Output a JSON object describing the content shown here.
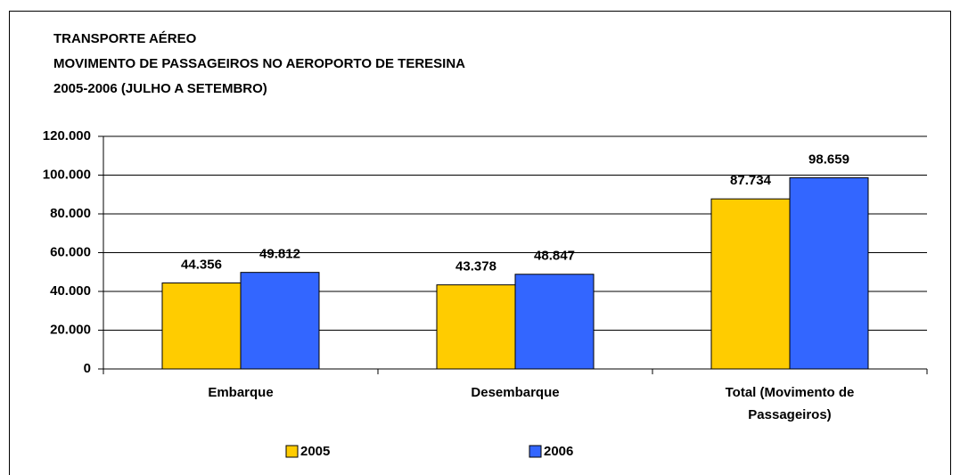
{
  "chart_data": {
    "type": "bar",
    "title": [
      "TRANSPORTE AÉREO",
      "MOVIMENTO DE PASSAGEIROS NO AEROPORTO DE TERESINA",
      "2005-2006 (JULHO A SETEMBRO)"
    ],
    "categories": [
      "Embarque",
      "Desembarque",
      "Total (Movimento de Passageiros)"
    ],
    "series": [
      {
        "name": "2005",
        "color": "#ffcc00",
        "values": [
          44356,
          43378,
          87734
        ],
        "value_labels": [
          "44.356",
          "43.378",
          "87.734"
        ]
      },
      {
        "name": "2006",
        "color": "#3366ff",
        "values": [
          49812,
          48847,
          98659
        ],
        "value_labels": [
          "49.812",
          "48.847",
          "98.659"
        ]
      }
    ],
    "ylim": [
      0,
      120000
    ],
    "yticks": [
      0,
      {
        "value": 20000,
        "label": "20.000"
      },
      {
        "value": 40000,
        "label": "40.000"
      },
      {
        "value": 60000,
        "label": "60.000"
      },
      {
        "value": 80000,
        "label": "80.000"
      },
      {
        "value": 100000,
        "label": "100.000"
      },
      {
        "value": 120000,
        "label": "120.000"
      }
    ],
    "grid": true,
    "legend": "bottom"
  }
}
